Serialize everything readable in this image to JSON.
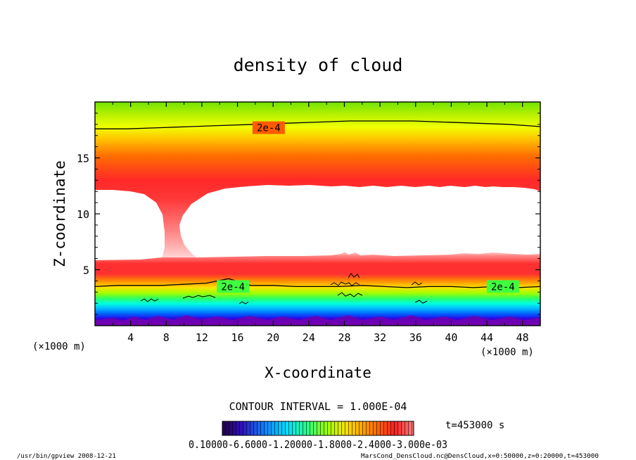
{
  "chart_data": {
    "type": "heatmap",
    "title": "density of cloud",
    "xlabel": "X-coordinate",
    "ylabel": "Z-coordinate",
    "x_unit": "(×1000 m)",
    "z_unit": "(×1000 m)",
    "xlim": [
      0,
      50
    ],
    "zlim": [
      0,
      20
    ],
    "x_ticks": [
      "4",
      "8",
      "12",
      "16",
      "20",
      "24",
      "28",
      "32",
      "36",
      "40",
      "44",
      "48"
    ],
    "x_tick_values": [
      4,
      8,
      12,
      16,
      20,
      24,
      28,
      32,
      36,
      40,
      44,
      48
    ],
    "z_ticks": [
      "5",
      "10",
      "15"
    ],
    "z_tick_values": [
      5,
      10,
      15
    ],
    "contour_labels": [
      {
        "text": "2e-4",
        "x": 19.5,
        "z": 17.7
      },
      {
        "text": "2e-4",
        "x": 15.5,
        "z": 3.5
      },
      {
        "text": "2e-4",
        "x": 45.8,
        "z": 3.5
      }
    ],
    "upper_contour_z": [
      17.6,
      17.6,
      17.7,
      17.8,
      17.9,
      18.0,
      18.1,
      18.2,
      18.3,
      18.3,
      18.3,
      18.2,
      18.1,
      18.0,
      17.8
    ],
    "lower_contour_z": [
      3.5,
      3.6,
      3.6,
      3.6,
      3.7,
      3.8,
      4.2,
      3.6,
      3.6,
      3.5,
      3.5,
      3.5,
      3.6,
      3.5,
      3.4,
      3.5,
      3.5,
      3.4,
      3.5,
      3.4,
      3.5
    ],
    "contour_interval": "CONTOUR INTERVAL = 1.000E-04",
    "time": "t=453000 s",
    "colorbar_labels": "0.10000-6.6000-1.20000-1.8000-2.4000-3.000e-03"
  },
  "footer": {
    "program": "/usr/bin/gpview   2008-12-21",
    "source": "MarsCond_DensCloud.nc@DensCloud,x=0:50000,z=0:20000,t=453000"
  },
  "colors": {
    "green": "#7cf000",
    "yellow": "#e8ff00",
    "orange": "#ffb000",
    "red": "#ff3030",
    "pink": "#ff9090",
    "cyan": "#00ffe0",
    "blue": "#0070ff",
    "indigo": "#4000d0",
    "purple": "#9000a0"
  }
}
